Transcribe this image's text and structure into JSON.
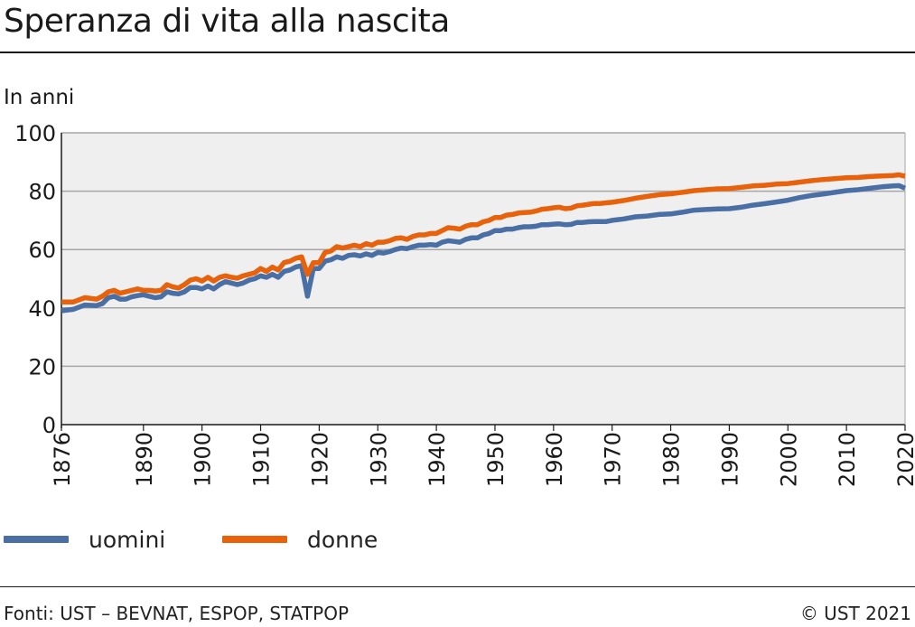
{
  "header": {
    "title": "Speranza di vita alla nascita"
  },
  "footer": {
    "sources": "Fonti: UST – BEVNAT, ESPOP, STATPOP",
    "copyright": "© UST 2021"
  },
  "colors": {
    "uomini": "#4a6fa5",
    "donne": "#e8620c",
    "plot_bg": "#efefef",
    "grid": "#a6a6a6"
  },
  "chart_data": {
    "type": "line",
    "title": "Speranza di vita alla nascita",
    "ylabel": "In anni",
    "xlabel": "",
    "xlim": [
      1876,
      2020
    ],
    "ylim": [
      0,
      100
    ],
    "yticks": [
      0,
      20,
      40,
      60,
      80,
      100
    ],
    "xtick_labels": [
      1876,
      1890,
      1900,
      1910,
      1920,
      1930,
      1940,
      1950,
      1960,
      1970,
      1980,
      1990,
      2000,
      2010,
      2020
    ],
    "grid": "horizontal",
    "legend": "bottom-left",
    "series": [
      {
        "name": "uomini",
        "points": [
          [
            1876,
            39.0
          ],
          [
            1878,
            39.5
          ],
          [
            1880,
            41.0
          ],
          [
            1882,
            40.8
          ],
          [
            1883,
            41.5
          ],
          [
            1884,
            43.5
          ],
          [
            1885,
            44.0
          ],
          [
            1886,
            43.0
          ],
          [
            1887,
            43.0
          ],
          [
            1888,
            43.8
          ],
          [
            1889,
            44.2
          ],
          [
            1890,
            44.5
          ],
          [
            1891,
            44.0
          ],
          [
            1892,
            43.5
          ],
          [
            1893,
            43.8
          ],
          [
            1894,
            45.5
          ],
          [
            1895,
            45.0
          ],
          [
            1896,
            44.8
          ],
          [
            1897,
            45.5
          ],
          [
            1898,
            47.0
          ],
          [
            1899,
            47.0
          ],
          [
            1900,
            46.5
          ],
          [
            1901,
            47.5
          ],
          [
            1902,
            46.5
          ],
          [
            1903,
            48.0
          ],
          [
            1904,
            49.0
          ],
          [
            1905,
            48.5
          ],
          [
            1906,
            48.0
          ],
          [
            1907,
            48.5
          ],
          [
            1908,
            49.5
          ],
          [
            1909,
            50.0
          ],
          [
            1910,
            51.0
          ],
          [
            1911,
            50.5
          ],
          [
            1912,
            51.5
          ],
          [
            1913,
            50.5
          ],
          [
            1914,
            52.5
          ],
          [
            1915,
            53.0
          ],
          [
            1916,
            54.0
          ],
          [
            1917,
            54.5
          ],
          [
            1918,
            44.0
          ],
          [
            1919,
            53.5
          ],
          [
            1920,
            53.5
          ],
          [
            1921,
            56.0
          ],
          [
            1922,
            56.5
          ],
          [
            1923,
            57.5
          ],
          [
            1924,
            57.0
          ],
          [
            1925,
            58.0
          ],
          [
            1926,
            58.2
          ],
          [
            1927,
            57.8
          ],
          [
            1928,
            58.5
          ],
          [
            1929,
            58.0
          ],
          [
            1930,
            59.0
          ],
          [
            1931,
            58.8
          ],
          [
            1932,
            59.3
          ],
          [
            1933,
            60.0
          ],
          [
            1934,
            60.5
          ],
          [
            1935,
            60.3
          ],
          [
            1936,
            61.0
          ],
          [
            1937,
            61.5
          ],
          [
            1938,
            61.5
          ],
          [
            1939,
            61.7
          ],
          [
            1940,
            61.5
          ],
          [
            1941,
            62.5
          ],
          [
            1942,
            63.0
          ],
          [
            1943,
            62.8
          ],
          [
            1944,
            62.5
          ],
          [
            1945,
            63.5
          ],
          [
            1946,
            64.0
          ],
          [
            1947,
            64.0
          ],
          [
            1948,
            65.0
          ],
          [
            1949,
            65.5
          ],
          [
            1950,
            66.5
          ],
          [
            1951,
            66.5
          ],
          [
            1952,
            67.0
          ],
          [
            1953,
            67.0
          ],
          [
            1954,
            67.5
          ],
          [
            1955,
            67.8
          ],
          [
            1956,
            67.8
          ],
          [
            1957,
            68.0
          ],
          [
            1958,
            68.5
          ],
          [
            1959,
            68.5
          ],
          [
            1960,
            68.7
          ],
          [
            1961,
            68.8
          ],
          [
            1962,
            68.5
          ],
          [
            1963,
            68.6
          ],
          [
            1964,
            69.3
          ],
          [
            1965,
            69.3
          ],
          [
            1966,
            69.5
          ],
          [
            1967,
            69.6
          ],
          [
            1968,
            69.6
          ],
          [
            1969,
            69.6
          ],
          [
            1970,
            70.0
          ],
          [
            1972,
            70.5
          ],
          [
            1974,
            71.2
          ],
          [
            1976,
            71.5
          ],
          [
            1978,
            72.0
          ],
          [
            1980,
            72.2
          ],
          [
            1982,
            72.8
          ],
          [
            1984,
            73.5
          ],
          [
            1986,
            73.7
          ],
          [
            1988,
            73.9
          ],
          [
            1990,
            74.0
          ],
          [
            1992,
            74.5
          ],
          [
            1994,
            75.2
          ],
          [
            1996,
            75.7
          ],
          [
            1998,
            76.3
          ],
          [
            2000,
            76.9
          ],
          [
            2002,
            77.8
          ],
          [
            2004,
            78.5
          ],
          [
            2006,
            79.0
          ],
          [
            2008,
            79.6
          ],
          [
            2010,
            80.2
          ],
          [
            2012,
            80.5
          ],
          [
            2014,
            81.0
          ],
          [
            2016,
            81.5
          ],
          [
            2018,
            81.8
          ],
          [
            2019,
            81.9
          ],
          [
            2020,
            81.0
          ]
        ]
      },
      {
        "name": "donne",
        "points": [
          [
            1876,
            42.0
          ],
          [
            1878,
            42.0
          ],
          [
            1880,
            43.5
          ],
          [
            1882,
            43.0
          ],
          [
            1883,
            44.0
          ],
          [
            1884,
            45.5
          ],
          [
            1885,
            46.0
          ],
          [
            1886,
            45.0
          ],
          [
            1887,
            45.5
          ],
          [
            1888,
            46.0
          ],
          [
            1889,
            46.5
          ],
          [
            1890,
            46.0
          ],
          [
            1891,
            46.0
          ],
          [
            1892,
            45.8
          ],
          [
            1893,
            46.0
          ],
          [
            1894,
            48.0
          ],
          [
            1895,
            47.2
          ],
          [
            1896,
            46.8
          ],
          [
            1897,
            48.0
          ],
          [
            1898,
            49.5
          ],
          [
            1899,
            50.0
          ],
          [
            1900,
            49.2
          ],
          [
            1901,
            50.5
          ],
          [
            1902,
            49.2
          ],
          [
            1903,
            50.5
          ],
          [
            1904,
            51.0
          ],
          [
            1905,
            50.5
          ],
          [
            1906,
            50.2
          ],
          [
            1907,
            51.0
          ],
          [
            1908,
            51.5
          ],
          [
            1909,
            52.0
          ],
          [
            1910,
            53.5
          ],
          [
            1911,
            52.5
          ],
          [
            1912,
            54.0
          ],
          [
            1913,
            53.0
          ],
          [
            1914,
            55.5
          ],
          [
            1915,
            56.0
          ],
          [
            1916,
            57.0
          ],
          [
            1917,
            57.5
          ],
          [
            1918,
            51.5
          ],
          [
            1919,
            55.5
          ],
          [
            1920,
            55.5
          ],
          [
            1921,
            59.0
          ],
          [
            1922,
            59.5
          ],
          [
            1923,
            61.0
          ],
          [
            1924,
            60.5
          ],
          [
            1925,
            61.0
          ],
          [
            1926,
            61.5
          ],
          [
            1927,
            61.0
          ],
          [
            1928,
            62.0
          ],
          [
            1929,
            61.5
          ],
          [
            1930,
            62.5
          ],
          [
            1931,
            62.5
          ],
          [
            1932,
            63.0
          ],
          [
            1933,
            63.8
          ],
          [
            1934,
            64.0
          ],
          [
            1935,
            63.5
          ],
          [
            1936,
            64.5
          ],
          [
            1937,
            65.0
          ],
          [
            1938,
            65.0
          ],
          [
            1939,
            65.5
          ],
          [
            1940,
            65.5
          ],
          [
            1941,
            66.5
          ],
          [
            1942,
            67.5
          ],
          [
            1943,
            67.3
          ],
          [
            1944,
            67.0
          ],
          [
            1945,
            68.0
          ],
          [
            1946,
            68.5
          ],
          [
            1947,
            68.5
          ],
          [
            1948,
            69.5
          ],
          [
            1949,
            70.0
          ],
          [
            1950,
            71.0
          ],
          [
            1951,
            71.0
          ],
          [
            1952,
            71.8
          ],
          [
            1953,
            72.0
          ],
          [
            1954,
            72.5
          ],
          [
            1955,
            72.7
          ],
          [
            1956,
            72.8
          ],
          [
            1957,
            73.2
          ],
          [
            1958,
            73.8
          ],
          [
            1959,
            74.0
          ],
          [
            1960,
            74.3
          ],
          [
            1961,
            74.5
          ],
          [
            1962,
            74.0
          ],
          [
            1963,
            74.2
          ],
          [
            1964,
            75.0
          ],
          [
            1965,
            75.2
          ],
          [
            1966,
            75.5
          ],
          [
            1967,
            75.8
          ],
          [
            1968,
            75.8
          ],
          [
            1969,
            76.0
          ],
          [
            1970,
            76.2
          ],
          [
            1972,
            76.8
          ],
          [
            1974,
            77.6
          ],
          [
            1976,
            78.2
          ],
          [
            1978,
            78.8
          ],
          [
            1980,
            79.1
          ],
          [
            1982,
            79.6
          ],
          [
            1984,
            80.2
          ],
          [
            1986,
            80.5
          ],
          [
            1988,
            80.8
          ],
          [
            1990,
            80.9
          ],
          [
            1992,
            81.3
          ],
          [
            1994,
            81.8
          ],
          [
            1996,
            82.0
          ],
          [
            1998,
            82.4
          ],
          [
            2000,
            82.6
          ],
          [
            2002,
            83.1
          ],
          [
            2004,
            83.6
          ],
          [
            2006,
            84.0
          ],
          [
            2008,
            84.3
          ],
          [
            2010,
            84.6
          ],
          [
            2012,
            84.7
          ],
          [
            2014,
            85.0
          ],
          [
            2016,
            85.2
          ],
          [
            2018,
            85.4
          ],
          [
            2019,
            85.6
          ],
          [
            2020,
            85.1
          ]
        ]
      }
    ]
  }
}
